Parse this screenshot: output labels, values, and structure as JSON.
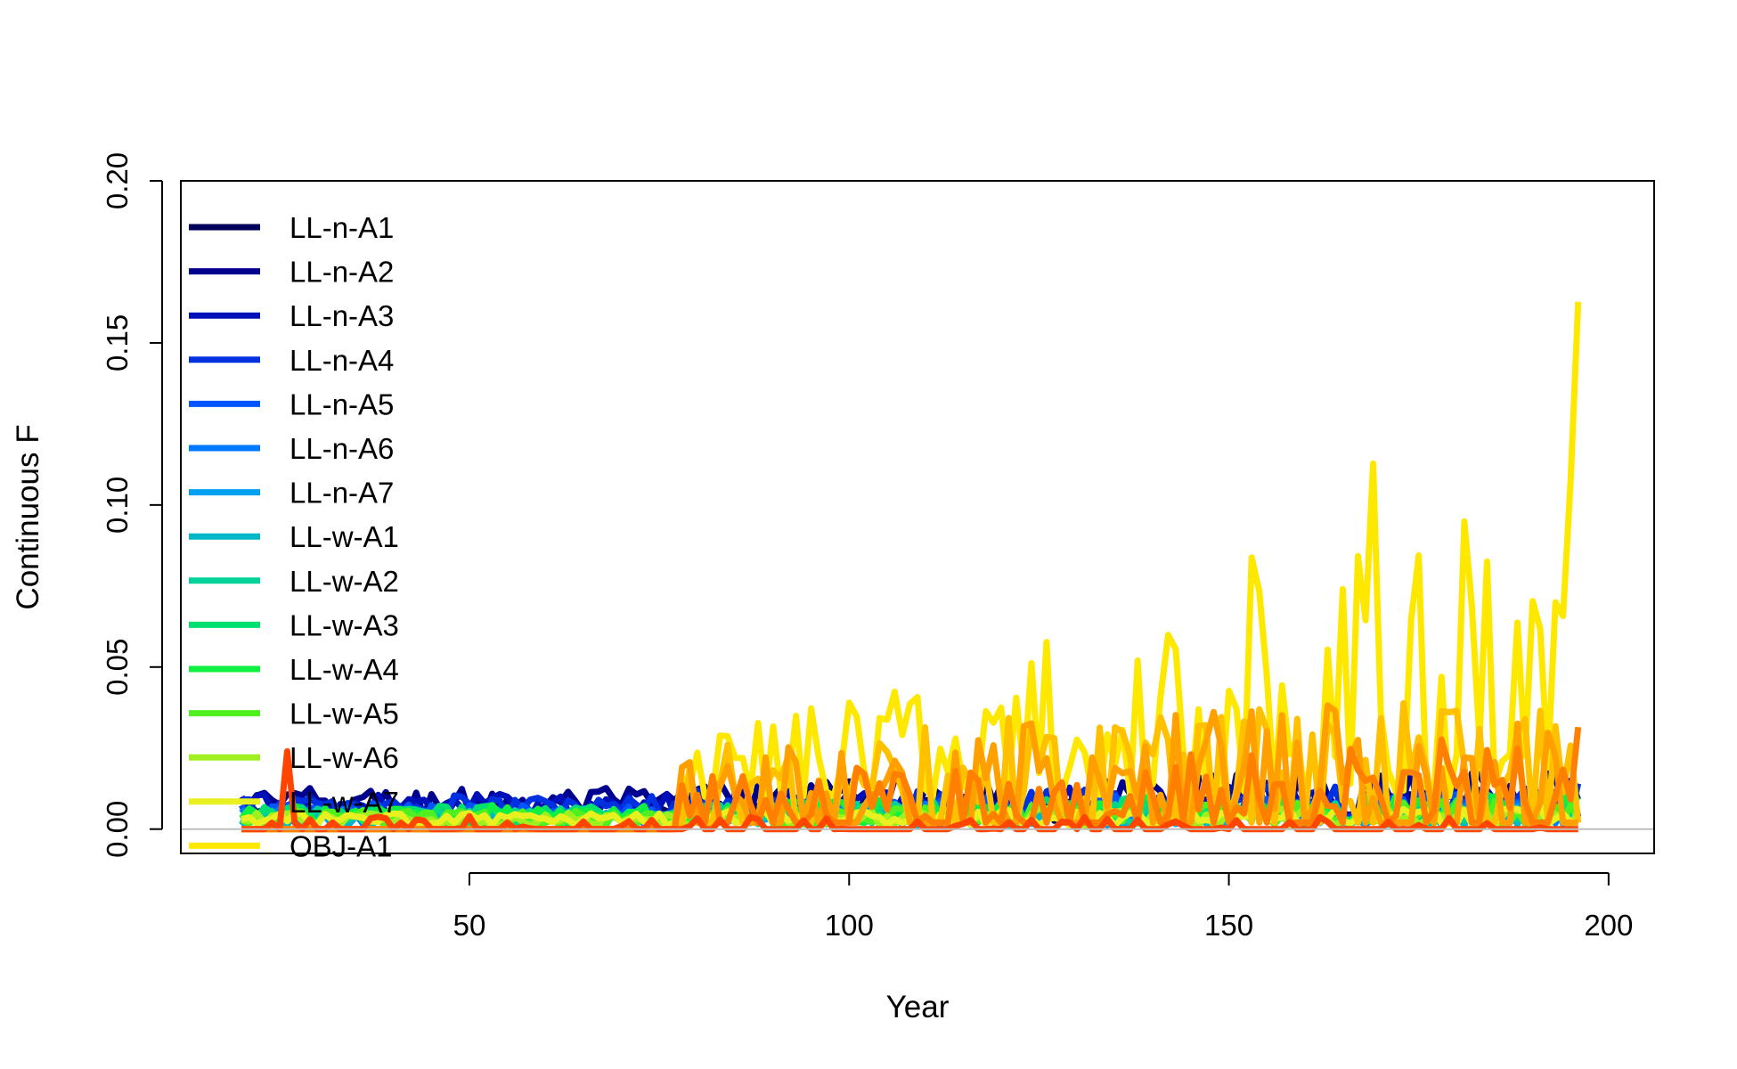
{
  "chart_data": {
    "type": "line",
    "xlabel": "Year",
    "ylabel": "Continuous F",
    "xlim": [
      12,
      206
    ],
    "ylim": [
      -0.0075,
      0.2
    ],
    "xticks": [
      50,
      100,
      150,
      200
    ],
    "yticks": [
      0.0,
      0.05,
      0.1,
      0.15,
      0.2
    ],
    "xtick_labels": [
      "50",
      "100",
      "150",
      "200"
    ],
    "ytick_labels": [
      "0.00",
      "0.05",
      "0.10",
      "0.15",
      "0.20"
    ],
    "grid": false,
    "legend_position": "top-left",
    "reference_line": {
      "y": 0,
      "color": "#bebebe"
    },
    "x_start": 20,
    "x_end": 196,
    "series": [
      {
        "name": "LL-n-A1",
        "color": "#00005c",
        "pattern": "low",
        "base": 0.004,
        "amp": 0.006,
        "start": 20
      },
      {
        "name": "LL-n-A2",
        "color": "#00008f",
        "pattern": "low",
        "base": 0.006,
        "amp": 0.01,
        "start": 20
      },
      {
        "name": "LL-n-A3",
        "color": "#0010b8",
        "pattern": "low",
        "base": 0.006,
        "amp": 0.008,
        "start": 20
      },
      {
        "name": "LL-n-A4",
        "color": "#0030e0",
        "pattern": "low",
        "base": 0.005,
        "amp": 0.008,
        "start": 20
      },
      {
        "name": "LL-n-A5",
        "color": "#0055ff",
        "pattern": "low",
        "base": 0.004,
        "amp": 0.006,
        "start": 20
      },
      {
        "name": "LL-n-A6",
        "color": "#0078ff",
        "pattern": "low",
        "base": 0.003,
        "amp": 0.005,
        "start": 20
      },
      {
        "name": "LL-n-A7",
        "color": "#00a0f0",
        "pattern": "low",
        "base": 0.002,
        "amp": 0.004,
        "start": 20
      },
      {
        "name": "LL-w-A1",
        "color": "#00b8c8",
        "pattern": "low",
        "base": 0.002,
        "amp": 0.004,
        "start": 20
      },
      {
        "name": "LL-w-A2",
        "color": "#00d29a",
        "pattern": "low",
        "base": 0.003,
        "amp": 0.005,
        "start": 20
      },
      {
        "name": "LL-w-A3",
        "color": "#00e070",
        "pattern": "low",
        "base": 0.003,
        "amp": 0.006,
        "start": 20
      },
      {
        "name": "LL-w-A4",
        "color": "#10f040",
        "pattern": "low",
        "base": 0.003,
        "amp": 0.006,
        "start": 20
      },
      {
        "name": "LL-w-A5",
        "color": "#50f020",
        "pattern": "low",
        "base": 0.002,
        "amp": 0.005,
        "start": 20
      },
      {
        "name": "LL-w-A6",
        "color": "#a0f020",
        "pattern": "low",
        "base": 0.002,
        "amp": 0.004,
        "start": 20
      },
      {
        "name": "LL-w-A7",
        "color": "#e8f020",
        "pattern": "low",
        "base": 0.002,
        "amp": 0.004,
        "start": 20
      },
      {
        "name": "OBJ-A1",
        "color": "#ffe800",
        "pattern": "high",
        "base": 0.01,
        "amp": 0.06,
        "start": 78
      },
      {
        "name": "",
        "color": "#ffc000",
        "pattern": "mid",
        "base": 0.008,
        "amp": 0.03,
        "start": 78
      },
      {
        "name": "",
        "color": "#ffa000",
        "pattern": "mid",
        "base": 0.006,
        "amp": 0.03,
        "start": 78
      },
      {
        "name": "",
        "color": "#ff8000",
        "pattern": "mid",
        "base": 0.004,
        "amp": 0.02,
        "start": 78
      },
      {
        "name": "",
        "color": "#ff4500",
        "pattern": "red",
        "base": 0.001,
        "amp": 0.004,
        "start": 20
      }
    ]
  }
}
